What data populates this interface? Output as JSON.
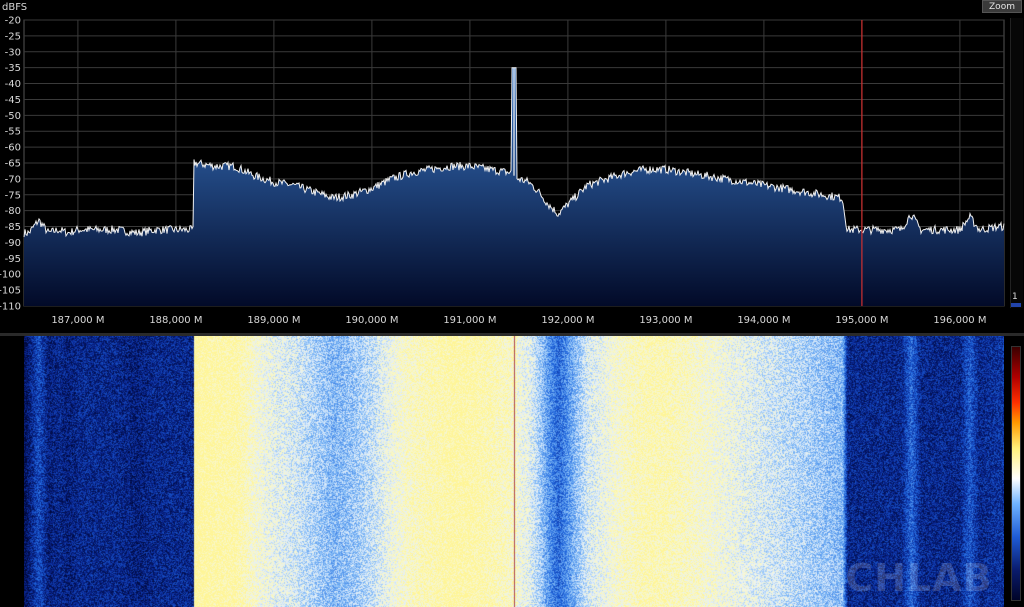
{
  "spectrum": {
    "unit_label": "dBFS",
    "y_ticks": [
      "-20",
      "-25",
      "-30",
      "-35",
      "-40",
      "-45",
      "-50",
      "-55",
      "-60",
      "-65",
      "-70",
      "-75",
      "-80",
      "-85",
      "-90",
      "-95",
      "-100",
      "-105",
      "-110"
    ],
    "x_ticks": [
      "187,000 M",
      "188,000 M",
      "189,000 M",
      "190,000 M",
      "191,000 M",
      "192,000 M",
      "193,000 M",
      "194,000 M",
      "195,000 M",
      "196,000 M"
    ],
    "marker_frequency_mhz": 195.0,
    "colors": {
      "trace": "#f2f2f2",
      "fill_top": "#3a78c8",
      "fill_bottom": "#020a28",
      "grid": "#3a3a3a",
      "marker": "#d03030"
    }
  },
  "toolbar": {
    "zoom_label": "Zoom"
  },
  "slider": {
    "value": "1"
  },
  "waterfall": {
    "center_marker_mhz": 191.45,
    "watermark": "BYTECHLAB"
  },
  "chart_data": {
    "type": "line",
    "title": "",
    "xlabel": "",
    "ylabel": "dBFS",
    "xlim": [
      186.45,
      196.45
    ],
    "ylim": [
      -110,
      -20
    ],
    "x": [
      186.5,
      186.6,
      186.7,
      186.8,
      186.9,
      187.0,
      187.2,
      187.4,
      187.6,
      187.8,
      188.0,
      188.15,
      188.2,
      188.4,
      188.6,
      188.8,
      189.0,
      189.2,
      189.4,
      189.6,
      189.8,
      190.0,
      190.2,
      190.4,
      190.6,
      190.8,
      191.0,
      191.2,
      191.4,
      191.45,
      191.5,
      191.6,
      191.7,
      191.8,
      191.9,
      192.0,
      192.1,
      192.2,
      192.4,
      192.6,
      192.8,
      193.0,
      193.2,
      193.4,
      193.6,
      193.8,
      194.0,
      194.2,
      194.4,
      194.6,
      194.8,
      194.85,
      195.0,
      195.2,
      195.4,
      195.5,
      195.6,
      195.8,
      196.0,
      196.1,
      196.2,
      196.4
    ],
    "series": [
      {
        "values": [
          -87,
          -83,
          -87,
          -86,
          -87,
          -86,
          -86,
          -86,
          -87,
          -86,
          -86,
          -86,
          -65,
          -66,
          -66,
          -69,
          -71,
          -72,
          -74,
          -76,
          -75,
          -73,
          -70,
          -68,
          -67,
          -66,
          -66,
          -67,
          -68,
          -35,
          -70,
          -71,
          -74,
          -78,
          -81,
          -78,
          -75,
          -72,
          -70,
          -68,
          -67,
          -67,
          -68,
          -69,
          -70,
          -71,
          -72,
          -73,
          -74,
          -75,
          -76,
          -86,
          -86,
          -86,
          -86,
          -81,
          -86,
          -86,
          -86,
          -82,
          -86,
          -85
        ]
      }
    ]
  }
}
